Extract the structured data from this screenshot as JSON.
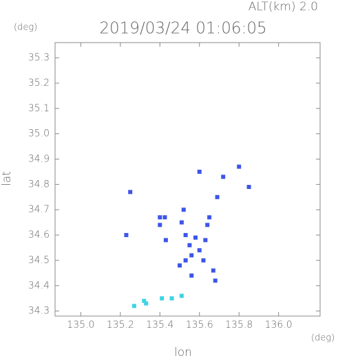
{
  "chart_data": {
    "type": "scatter",
    "title": "2019/03/24 01:06:05",
    "subtitle": "ALT(km) 2.0",
    "x_label": "lon",
    "y_label": "lat",
    "x_unit": "(deg)",
    "y_unit": "(deg)",
    "xlim": [
      134.87,
      136.21
    ],
    "ylim": [
      34.28,
      35.36
    ],
    "xticks": [
      {
        "value": 135,
        "label": "135.0"
      },
      135.2,
      135.4,
      135.6,
      135.8,
      {
        "value": 136,
        "label": "136.0"
      }
    ],
    "yticks": [
      34.3,
      34.4,
      34.5,
      34.6,
      34.7,
      34.8,
      34.9,
      {
        "value": 35,
        "label": "35.0"
      },
      35.1,
      35.2,
      35.3
    ],
    "series": [
      {
        "color": "#3d55e8",
        "x": [
          135.25,
          135.23,
          135.4,
          135.4,
          135.425,
          135.51,
          135.53,
          135.55,
          135.53,
          135.56,
          135.58,
          135.62,
          135.63,
          135.64,
          135.65,
          135.68,
          135.67,
          135.8,
          135.85,
          135.72,
          135.6,
          135.69,
          135.52,
          135.43,
          135.6,
          135.5,
          135.56
        ],
        "values": [
          34.77,
          34.6,
          34.64,
          34.67,
          34.67,
          34.65,
          34.6,
          34.56,
          34.5,
          34.52,
          34.59,
          34.5,
          34.58,
          34.64,
          34.67,
          34.42,
          34.46,
          34.87,
          34.79,
          34.83,
          34.85,
          34.75,
          34.7,
          34.58,
          34.54,
          34.48,
          34.44
        ]
      },
      {
        "color": "#3fd3e6",
        "x": [
          135.27,
          135.33,
          135.41,
          135.46,
          135.51,
          135.32
        ],
        "values": [
          34.32,
          34.33,
          34.35,
          34.35,
          34.36,
          34.34
        ]
      }
    ]
  }
}
